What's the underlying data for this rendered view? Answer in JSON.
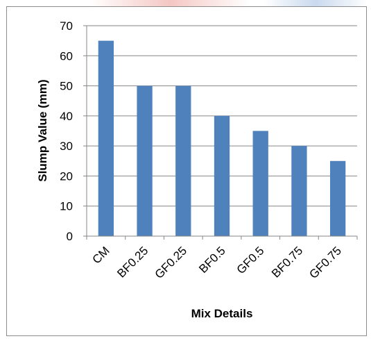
{
  "chart_data": {
    "type": "bar",
    "categories": [
      "CM",
      "BF0.25",
      "GF0.25",
      "BF0.5",
      "GF0.5",
      "BF0.75",
      "GF0.75"
    ],
    "series": [
      {
        "values": [
          65,
          50,
          50,
          40,
          35,
          30,
          25
        ]
      }
    ],
    "xlabel": "Mix Details",
    "ylabel": "Slump Value (mm)",
    "ylim": [
      0,
      70
    ],
    "yticks": [
      0,
      10,
      20,
      30,
      40,
      50,
      60,
      70
    ],
    "grid": true,
    "legend": "none",
    "bar_color": "#4f81bd",
    "grid_color": "#868686"
  }
}
